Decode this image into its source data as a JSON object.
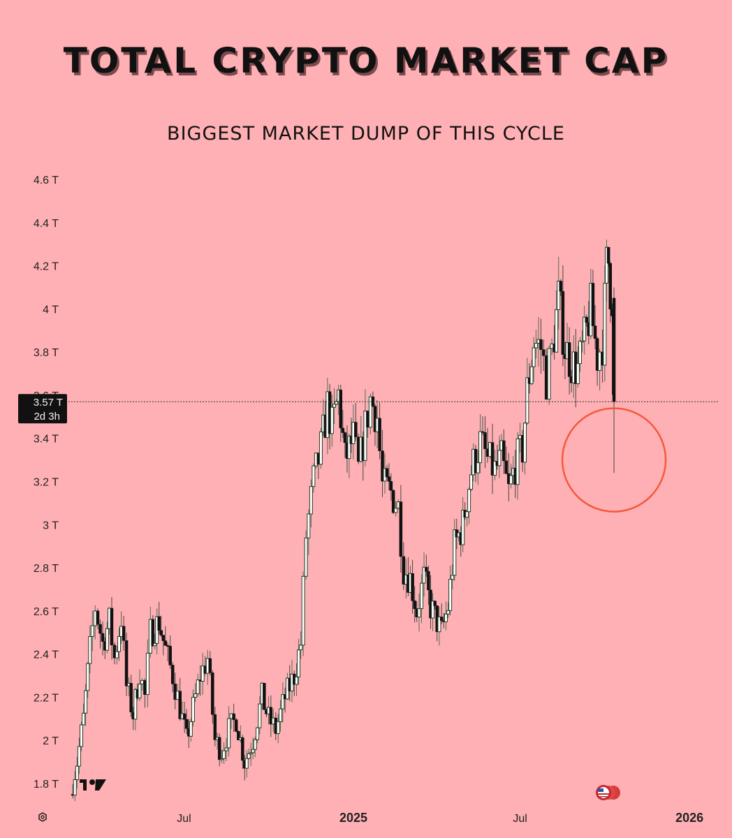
{
  "header": {
    "title": "TOTAL CRYPTO MARKET CAP",
    "subtitle": "BIGGEST MARKET DUMP OF THIS CYCLE"
  },
  "chart_data": {
    "type": "candlestick",
    "title": "TOTAL CRYPTO MARKET CAP",
    "subtitle": "BIGGEST MARKET DUMP OF THIS CYCLE",
    "y_unit": "T",
    "ylim": [
      1.7,
      4.7
    ],
    "y_ticks": [
      "1.8 T",
      "2 T",
      "2.2 T",
      "2.4 T",
      "2.6 T",
      "2.8 T",
      "3 T",
      "3.2 T",
      "3.4 T",
      "3.6 T",
      "3.8 T",
      "4 T",
      "4.2 T",
      "4.4 T",
      "4.6 T"
    ],
    "y_tick_values": [
      1.8,
      2.0,
      2.2,
      2.4,
      2.6,
      2.8,
      3.0,
      3.2,
      3.4,
      3.6,
      3.8,
      4.0,
      4.2,
      4.4,
      4.6
    ],
    "x_ticks": [
      {
        "label": "Jul",
        "date": "2024-07-01",
        "bold": false
      },
      {
        "label": "2025",
        "date": "2025-01-01",
        "bold": true
      },
      {
        "label": "Jul",
        "date": "2025-07-01",
        "bold": false
      },
      {
        "label": "2026",
        "date": "2026-01-01",
        "bold": true
      }
    ],
    "xlim": [
      "2024-02-28",
      "2026-02-01"
    ],
    "grid": false,
    "current_price": {
      "value": 3.57,
      "label": "3.57 T",
      "countdown": "2d 3h"
    },
    "highlight_circle": {
      "date": "2025-10-11",
      "value": 3.3,
      "color": "#f25a3c"
    },
    "series_anchor_points": [
      [
        "2024-03-01",
        1.75
      ],
      [
        "2024-03-08",
        1.9
      ],
      [
        "2024-03-15",
        2.1
      ],
      [
        "2024-03-22",
        2.42
      ],
      [
        "2024-03-28",
        2.62
      ],
      [
        "2024-04-05",
        2.45
      ],
      [
        "2024-04-12",
        2.55
      ],
      [
        "2024-04-18",
        2.38
      ],
      [
        "2024-04-25",
        2.57
      ],
      [
        "2024-05-01",
        2.25
      ],
      [
        "2024-05-08",
        2.12
      ],
      [
        "2024-05-15",
        2.32
      ],
      [
        "2024-05-21",
        2.2
      ],
      [
        "2024-05-27",
        2.5
      ],
      [
        "2024-06-05",
        2.55
      ],
      [
        "2024-06-12",
        2.42
      ],
      [
        "2024-06-20",
        2.3
      ],
      [
        "2024-06-28",
        2.15
      ],
      [
        "2024-07-05",
        2.0
      ],
      [
        "2024-07-12",
        2.15
      ],
      [
        "2024-07-20",
        2.3
      ],
      [
        "2024-07-28",
        2.38
      ],
      [
        "2024-08-05",
        2.0
      ],
      [
        "2024-08-12",
        1.95
      ],
      [
        "2024-08-20",
        2.05
      ],
      [
        "2024-08-28",
        2.1
      ],
      [
        "2024-09-06",
        1.9
      ],
      [
        "2024-09-15",
        2.0
      ],
      [
        "2024-09-25",
        2.2
      ],
      [
        "2024-10-02",
        2.1
      ],
      [
        "2024-10-10",
        2.05
      ],
      [
        "2024-10-20",
        2.2
      ],
      [
        "2024-10-30",
        2.3
      ],
      [
        "2024-11-06",
        2.45
      ],
      [
        "2024-11-12",
        2.95
      ],
      [
        "2024-11-20",
        3.2
      ],
      [
        "2024-11-28",
        3.35
      ],
      [
        "2024-12-05",
        3.55
      ],
      [
        "2024-12-10",
        3.45
      ],
      [
        "2024-12-17",
        3.6
      ],
      [
        "2024-12-24",
        3.3
      ],
      [
        "2025-01-02",
        3.4
      ],
      [
        "2025-01-08",
        3.25
      ],
      [
        "2025-01-15",
        3.45
      ],
      [
        "2025-01-21",
        3.58
      ],
      [
        "2025-01-28",
        3.5
      ],
      [
        "2025-02-03",
        3.18
      ],
      [
        "2025-02-12",
        3.15
      ],
      [
        "2025-02-20",
        3.08
      ],
      [
        "2025-02-26",
        2.8
      ],
      [
        "2025-03-05",
        2.75
      ],
      [
        "2025-03-12",
        2.6
      ],
      [
        "2025-03-20",
        2.75
      ],
      [
        "2025-03-27",
        2.62
      ],
      [
        "2025-04-03",
        2.55
      ],
      [
        "2025-04-08",
        2.5
      ],
      [
        "2025-04-15",
        2.62
      ],
      [
        "2025-04-22",
        2.9
      ],
      [
        "2025-05-01",
        3.0
      ],
      [
        "2025-05-10",
        3.25
      ],
      [
        "2025-05-20",
        3.38
      ],
      [
        "2025-05-28",
        3.3
      ],
      [
        "2025-06-05",
        3.25
      ],
      [
        "2025-06-12",
        3.3
      ],
      [
        "2025-06-20",
        3.15
      ],
      [
        "2025-06-27",
        3.28
      ],
      [
        "2025-07-05",
        3.35
      ],
      [
        "2025-07-10",
        3.62
      ],
      [
        "2025-07-17",
        3.85
      ],
      [
        "2025-07-25",
        3.82
      ],
      [
        "2025-07-31",
        3.68
      ],
      [
        "2025-08-06",
        3.8
      ],
      [
        "2025-08-13",
        4.05
      ],
      [
        "2025-08-20",
        3.82
      ],
      [
        "2025-08-27",
        3.75
      ],
      [
        "2025-09-03",
        3.72
      ],
      [
        "2025-09-10",
        3.85
      ],
      [
        "2025-09-17",
        4.0
      ],
      [
        "2025-09-24",
        3.78
      ],
      [
        "2025-09-30",
        3.85
      ],
      [
        "2025-10-04",
        4.2
      ],
      [
        "2025-10-06",
        4.22
      ],
      [
        "2025-10-08",
        4.1
      ],
      [
        "2025-10-10",
        4.06
      ],
      [
        "2025-10-11",
        3.57
      ]
    ]
  }
}
